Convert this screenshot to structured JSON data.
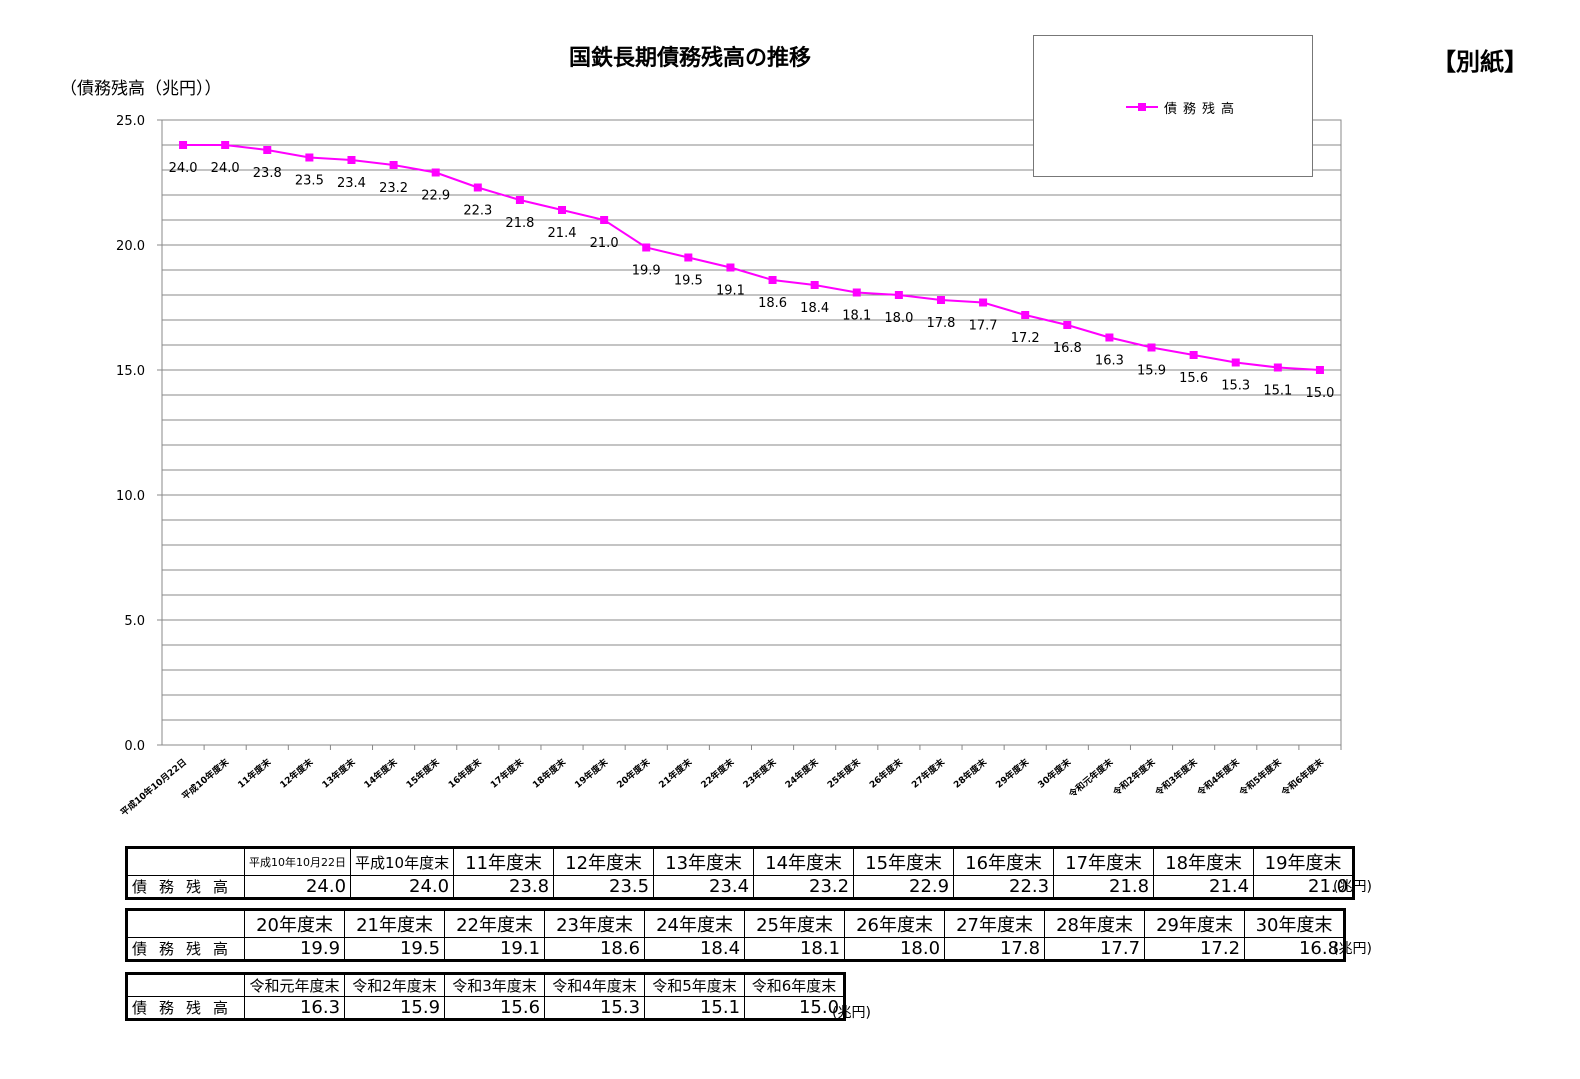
{
  "page": {
    "title": "国鉄長期債務残高の推移",
    "attachment_label": "【別紙】",
    "y_unit_label": "（債務残高（兆円））",
    "legend_label": "債務残高",
    "row_label": "債務残高",
    "unit_label": "(兆円)"
  },
  "colors": {
    "series": "#ff00ff",
    "grid": "#888888",
    "axis": "#888888"
  },
  "chart_data": {
    "type": "line",
    "title": "国鉄長期債務残高の推移",
    "ylabel": "（債務残高（兆円））",
    "xlabel": "",
    "ylim": [
      0,
      25
    ],
    "y_ticks": [
      "0.0",
      "5.0",
      "10.0",
      "15.0",
      "20.0",
      "25.0"
    ],
    "grid": true,
    "legend_position": "top-right",
    "categories": [
      "平成10年10月22日",
      "平成10年度末",
      "11年度末",
      "12年度末",
      "13年度末",
      "14年度末",
      "15年度末",
      "16年度末",
      "17年度末",
      "18年度末",
      "19年度末",
      "20年度末",
      "21年度末",
      "22年度末",
      "23年度末",
      "24年度末",
      "25年度末",
      "26年度末",
      "27年度末",
      "28年度末",
      "29年度末",
      "30年度末",
      "令和元年度末",
      "令和2年度末",
      "令和3年度末",
      "令和4年度末",
      "令和5年度末",
      "令和6年度末"
    ],
    "series": [
      {
        "name": "債務残高",
        "values": [
          24.0,
          24.0,
          23.8,
          23.5,
          23.4,
          23.2,
          22.9,
          22.3,
          21.8,
          21.4,
          21.0,
          19.9,
          19.5,
          19.1,
          18.6,
          18.4,
          18.1,
          18.0,
          17.8,
          17.7,
          17.2,
          16.8,
          16.3,
          15.9,
          15.6,
          15.3,
          15.1,
          15.0
        ],
        "labels": [
          "24.0",
          "24.0",
          "23.8",
          "23.5",
          "23.4",
          "23.2",
          "22.9",
          "22.3",
          "21.8",
          "21.4",
          "21.0",
          "19.9",
          "19.5",
          "19.1",
          "18.6",
          "18.4",
          "18.1",
          "18.0",
          "17.8",
          "17.7",
          "17.2",
          "16.8",
          "16.3",
          "15.9",
          "15.6",
          "15.3",
          "15.1",
          "15.0"
        ]
      }
    ]
  },
  "tables": [
    {
      "headers": [
        "平成10年10月22日",
        "平成10年度末",
        "11年度末",
        "12年度末",
        "13年度末",
        "14年度末",
        "15年度末",
        "16年度末",
        "17年度末",
        "18年度末",
        "19年度末"
      ],
      "values": [
        "24.0",
        "24.0",
        "23.8",
        "23.5",
        "23.4",
        "23.2",
        "22.9",
        "22.3",
        "21.8",
        "21.4",
        "21.0"
      ]
    },
    {
      "headers": [
        "20年度末",
        "21年度末",
        "22年度末",
        "23年度末",
        "24年度末",
        "25年度末",
        "26年度末",
        "27年度末",
        "28年度末",
        "29年度末",
        "30年度末"
      ],
      "values": [
        "19.9",
        "19.5",
        "19.1",
        "18.6",
        "18.4",
        "18.1",
        "18.0",
        "17.8",
        "17.7",
        "17.2",
        "16.8"
      ]
    },
    {
      "headers": [
        "令和元年度末",
        "令和2年度末",
        "令和3年度末",
        "令和4年度末",
        "令和5年度末",
        "令和6年度末"
      ],
      "values": [
        "16.3",
        "15.9",
        "15.6",
        "15.3",
        "15.1",
        "15.0"
      ]
    }
  ]
}
